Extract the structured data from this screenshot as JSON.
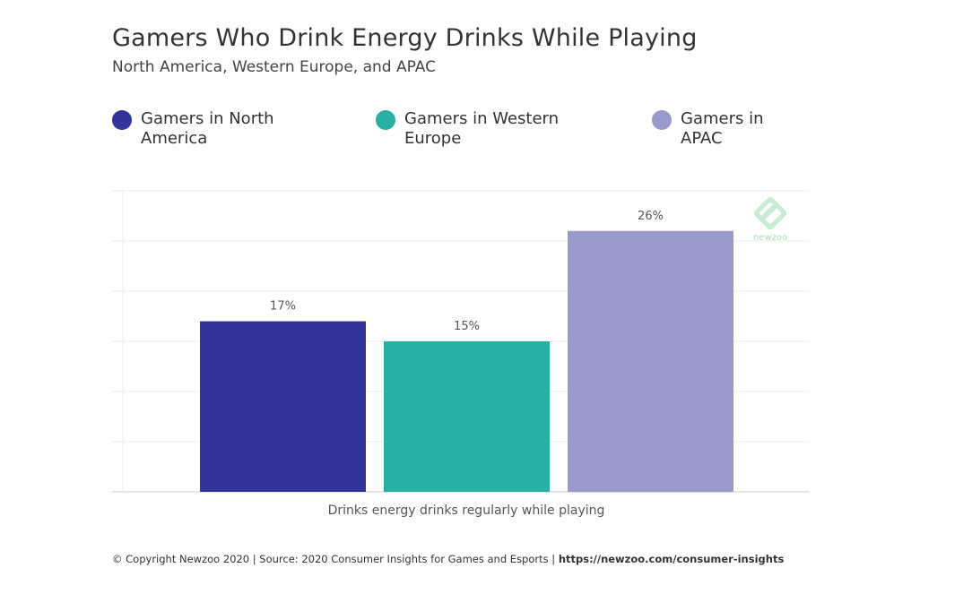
{
  "title": "Gamers Who Drink Energy Drinks While Playing",
  "subtitle": "North America, Western Europe, and APAC",
  "legend": [
    {
      "label_line1": "Gamers in North",
      "label_line2": "America",
      "color": "#33339a"
    },
    {
      "label_line1": "Gamers in Western",
      "label_line2": "Europe",
      "color": "#26b1a4"
    },
    {
      "label_line1": "Gamers in",
      "label_line2": "APAC",
      "color": "#9a99cc"
    }
  ],
  "chart_data": {
    "type": "bar",
    "categories": [
      "Drinks energy drinks regularly while playing"
    ],
    "xlabel": "Drinks energy drinks regularly while playing",
    "series": [
      {
        "name": "Gamers in North America",
        "values": [
          17
        ],
        "label": "17%",
        "color": "#33339a"
      },
      {
        "name": "Gamers in Western Europe",
        "values": [
          15
        ],
        "label": "15%",
        "color": "#26b1a4"
      },
      {
        "name": "Gamers in APAC",
        "values": [
          26
        ],
        "label": "26%",
        "color": "#9a99cc"
      }
    ],
    "ylim": [
      0,
      30
    ],
    "grid": true,
    "legend_position": "top"
  },
  "footer": {
    "text": "© Copyright Newzoo 2020 | Source: 2020 Consumer Insights for Games and Esports | ",
    "link": "https://newzoo.com/consumer-insights"
  },
  "logo": {
    "text": "newzoo",
    "color": "#a6dcb9"
  }
}
